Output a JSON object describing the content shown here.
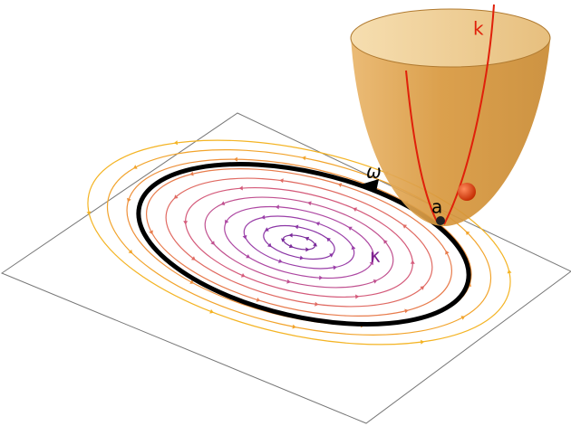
{
  "labels": {
    "k": "k",
    "omega": "ω",
    "a": "a",
    "kappa": "κ"
  }
}
